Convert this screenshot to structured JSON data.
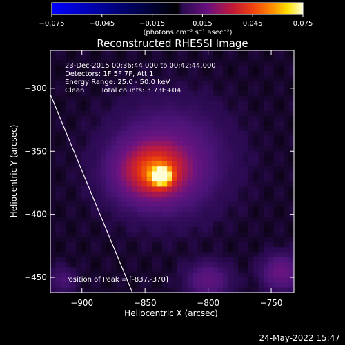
{
  "chart_data": {
    "type": "heatmap",
    "title": "Reconstructed RHESSI Image",
    "xlabel": "Heliocentric X (arcsec)",
    "ylabel": "Heliocentric Y (arcsec)",
    "xlim": [
      -925,
      -732
    ],
    "ylim": [
      -462,
      -270
    ],
    "x_ticks": [
      -900,
      -850,
      -800,
      -750
    ],
    "x_tick_labels": [
      "−900",
      "−850",
      "−800",
      "−750"
    ],
    "y_ticks": [
      -300,
      -350,
      -400,
      -450
    ],
    "y_tick_labels": [
      "−300",
      "−350",
      "−400",
      "−450"
    ],
    "colorbar": {
      "min": -0.075,
      "max": 0.075,
      "ticks": [
        -0.075,
        -0.045,
        -0.015,
        0.015,
        0.045,
        0.075
      ],
      "tick_labels": [
        "−0.075",
        "−0.045",
        "−0.015",
        "0.015",
        "0.045",
        "0.075"
      ],
      "units_label": "(photons cm⁻² s⁻¹ asec⁻²)",
      "colormap": "blue-black then purple-red-orange-yellow-white"
    },
    "annotations": {
      "line1": "23-Dec-2015 00:36:44.000 to 00:42:44.000",
      "line2": "Detectors: 1F 5F 7F, Att 1",
      "line3": "Energy Range: 25.0 - 50.0 keV",
      "line4_clean": "Clean",
      "line4_counts": "Total counts: 3.73E+04",
      "peak": "Position of Peak = [-837,-370]"
    },
    "peak_position": [
      -837,
      -370
    ],
    "limb_line": [
      [
        -925,
        -305
      ],
      [
        -860,
        -462
      ]
    ],
    "sources": [
      {
        "x": -837,
        "y": -370,
        "sx": 5,
        "sy": 4.5,
        "amp": 0.075
      },
      {
        "x": -843,
        "y": -366,
        "sx": 17,
        "sy": 14,
        "amp": 0.038
      },
      {
        "x": -832,
        "y": -357,
        "sx": 26,
        "sy": 24,
        "amp": 0.012
      },
      {
        "x": -800,
        "y": -452,
        "sx": 10,
        "sy": 8,
        "amp": 0.01
      },
      {
        "x": -742,
        "y": -446,
        "sx": 9,
        "sy": 8,
        "amp": 0.013
      },
      {
        "x": -915,
        "y": -452,
        "sx": 6,
        "sy": 6,
        "amp": 0.005
      }
    ],
    "background_level": 0.0008
  },
  "footer": {
    "date": "24-May-2022 15:47"
  }
}
